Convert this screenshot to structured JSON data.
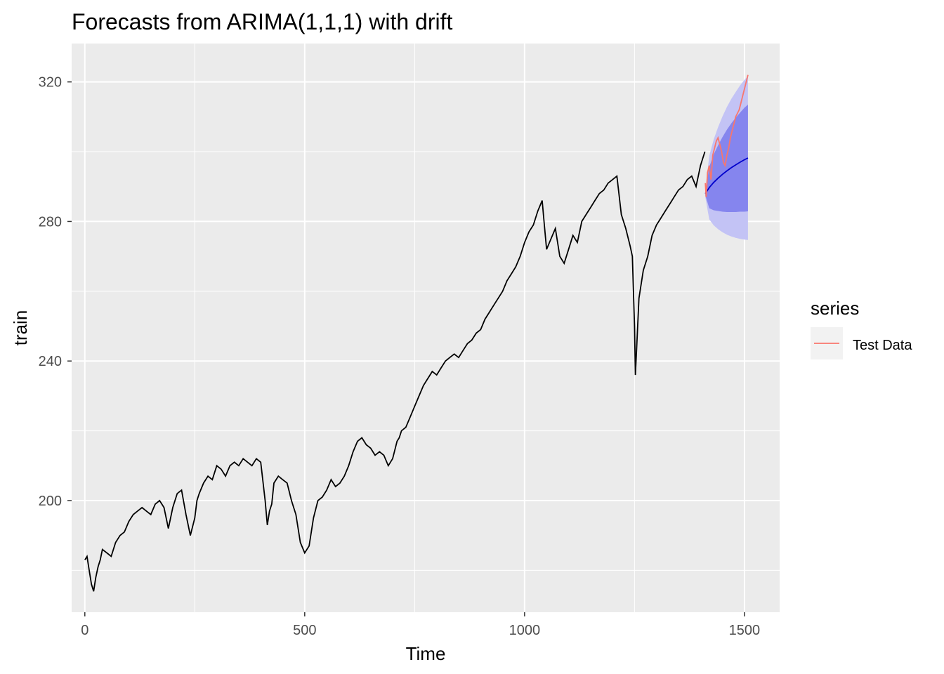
{
  "chart_data": {
    "type": "line",
    "title": "Forecasts from ARIMA(1,1,1) with drift",
    "xlabel": "Time",
    "ylabel": "train",
    "xlim": [
      -30,
      1580
    ],
    "ylim": [
      168,
      331
    ],
    "x_ticks": [
      0,
      500,
      1000,
      1500
    ],
    "y_ticks": [
      200,
      240,
      280,
      320
    ],
    "x_ticks_minor": [
      250,
      750,
      1250
    ],
    "y_ticks_minor": [
      180,
      220,
      260,
      300
    ],
    "grid": true,
    "legend": {
      "title": "series",
      "entries": [
        "Test Data"
      ],
      "position": "right"
    },
    "colors": {
      "panel": "#EBEBEB",
      "grid": "#FFFFFF",
      "train": "#000000",
      "test": "#F8766D",
      "forecast": "#0000CC",
      "pi80": "#8585EE",
      "pi95": "#C3C3F5"
    },
    "series": [
      {
        "role": "train",
        "x": [
          0,
          5,
          10,
          15,
          20,
          25,
          30,
          35,
          40,
          50,
          60,
          70,
          80,
          90,
          100,
          110,
          120,
          130,
          140,
          150,
          160,
          170,
          180,
          190,
          200,
          210,
          220,
          230,
          240,
          250,
          255,
          260,
          270,
          280,
          290,
          300,
          310,
          320,
          330,
          340,
          350,
          360,
          370,
          380,
          390,
          400,
          410,
          415,
          420,
          425,
          430,
          440,
          450,
          460,
          470,
          480,
          490,
          500,
          510,
          520,
          530,
          540,
          550,
          560,
          570,
          580,
          590,
          600,
          610,
          620,
          630,
          640,
          650,
          660,
          670,
          680,
          690,
          700,
          710,
          715,
          720,
          730,
          740,
          750,
          760,
          770,
          780,
          790,
          800,
          810,
          820,
          830,
          840,
          850,
          860,
          870,
          880,
          890,
          900,
          910,
          920,
          930,
          940,
          950,
          960,
          970,
          980,
          990,
          1000,
          1010,
          1020,
          1030,
          1040,
          1045,
          1050,
          1060,
          1070,
          1080,
          1090,
          1100,
          1110,
          1120,
          1130,
          1140,
          1150,
          1160,
          1170,
          1180,
          1190,
          1200,
          1210,
          1220,
          1230,
          1240,
          1245,
          1250,
          1252,
          1255,
          1260,
          1270,
          1280,
          1290,
          1300,
          1310,
          1320,
          1330,
          1340,
          1350,
          1360,
          1370,
          1380,
          1390,
          1400,
          1405,
          1410
        ],
        "y": [
          183,
          184,
          180,
          176,
          174,
          178,
          181,
          183,
          186,
          185,
          184,
          188,
          190,
          191,
          194,
          196,
          197,
          198,
          197,
          196,
          199,
          200,
          198,
          192,
          198,
          202,
          203,
          196,
          190,
          195,
          200,
          202,
          205,
          207,
          206,
          210,
          209,
          207,
          210,
          211,
          210,
          212,
          211,
          210,
          212,
          211,
          200,
          193,
          197,
          199,
          205,
          207,
          206,
          205,
          200,
          196,
          188,
          185,
          187,
          195,
          200,
          201,
          203,
          206,
          204,
          205,
          207,
          210,
          214,
          217,
          218,
          216,
          215,
          213,
          214,
          213,
          210,
          212,
          217,
          218,
          220,
          221,
          224,
          227,
          230,
          233,
          235,
          237,
          236,
          238,
          240,
          241,
          242,
          241,
          243,
          245,
          246,
          248,
          249,
          252,
          254,
          256,
          258,
          260,
          263,
          265,
          267,
          270,
          274,
          277,
          279,
          283,
          286,
          279,
          272,
          275,
          278,
          270,
          268,
          272,
          276,
          274,
          280,
          282,
          284,
          286,
          288,
          289,
          291,
          292,
          293,
          282,
          278,
          273,
          270,
          250,
          236,
          244,
          258,
          266,
          270,
          276,
          279,
          281,
          283,
          285,
          287,
          289,
          290,
          292,
          293,
          290,
          296,
          298,
          300
        ]
      },
      {
        "name": "Test Data",
        "x": [
          1411,
          1413,
          1416,
          1420,
          1424,
          1428,
          1432,
          1436,
          1440,
          1444,
          1448,
          1452,
          1456,
          1460,
          1464,
          1468,
          1472,
          1476,
          1480,
          1484,
          1488,
          1492,
          1496,
          1500,
          1504,
          1508
        ],
        "y": [
          291,
          287,
          294,
          296,
          292,
          299,
          301,
          303,
          304,
          302,
          300,
          297,
          296,
          299,
          301,
          304,
          306,
          308,
          310,
          311,
          312,
          314,
          316,
          318,
          320,
          322
        ]
      },
      {
        "role": "forecast",
        "x": [
          1411,
          1420,
          1430,
          1440,
          1450,
          1460,
          1470,
          1480,
          1490,
          1500,
          1508
        ],
        "y": [
          288,
          289.7,
          291.2,
          292.4,
          293.5,
          294.5,
          295.4,
          296.2,
          297.0,
          297.7,
          298.2
        ],
        "lo80": [
          287.5,
          283.8,
          283.2,
          283.0,
          282.8,
          282.7,
          282.7,
          282.7,
          282.8,
          282.8,
          282.9
        ],
        "hi80": [
          288.5,
          295.6,
          299.2,
          301.8,
          304.2,
          306.3,
          308.1,
          309.7,
          311.2,
          312.6,
          313.5
        ],
        "lo95": [
          287,
          280.6,
          278.9,
          277.8,
          276.9,
          276.2,
          275.7,
          275.3,
          275.0,
          274.8,
          274.7
        ],
        "hi95": [
          289,
          298.8,
          303.5,
          307.0,
          310.1,
          312.8,
          315.1,
          317.1,
          319.0,
          320.6,
          321.7
        ]
      }
    ]
  }
}
